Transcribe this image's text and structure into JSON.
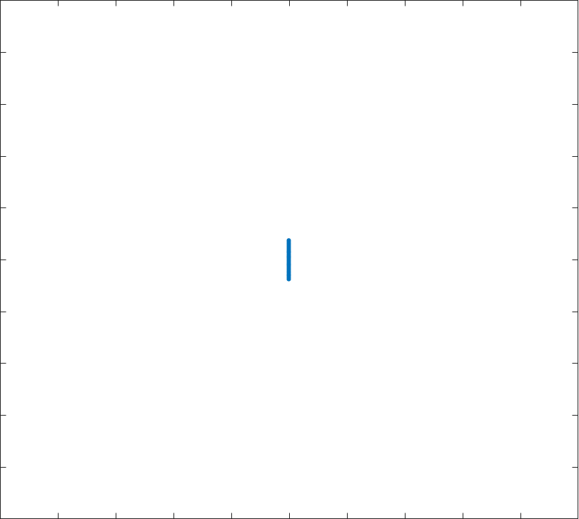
{
  "chart_data": {
    "type": "scatter",
    "title": "",
    "xlabel": "",
    "ylabel": "",
    "xlim": [
      -5,
      5
    ],
    "ylim": [
      -5,
      5
    ],
    "x_ticks": [
      -4,
      -3,
      -2,
      -1,
      0,
      1,
      2,
      3,
      4
    ],
    "y_ticks": [
      -4,
      -3,
      -2,
      -1,
      0,
      1,
      2,
      3,
      4
    ],
    "tick_labels_visible": false,
    "grid": false,
    "legend": "none",
    "series": [
      {
        "color": "#0072bd",
        "x": [
          0,
          0,
          0,
          0,
          0,
          0,
          0,
          0,
          0,
          0,
          0,
          0,
          0,
          0,
          0,
          0,
          0,
          0,
          0,
          0,
          0,
          0,
          0,
          0,
          0,
          0,
          0,
          0,
          0,
          0
        ],
        "y": [
          0.37,
          0.34,
          0.31,
          0.28,
          0.25,
          0.22,
          0.19,
          0.16,
          0.13,
          0.1,
          0.07,
          0.04,
          0.01,
          -0.02,
          -0.05,
          -0.08,
          -0.11,
          -0.14,
          -0.17,
          -0.2,
          -0.23,
          -0.26,
          -0.29,
          -0.32,
          -0.35,
          -0.38,
          0.15,
          -0.1,
          0.05,
          -0.3
        ]
      }
    ]
  }
}
